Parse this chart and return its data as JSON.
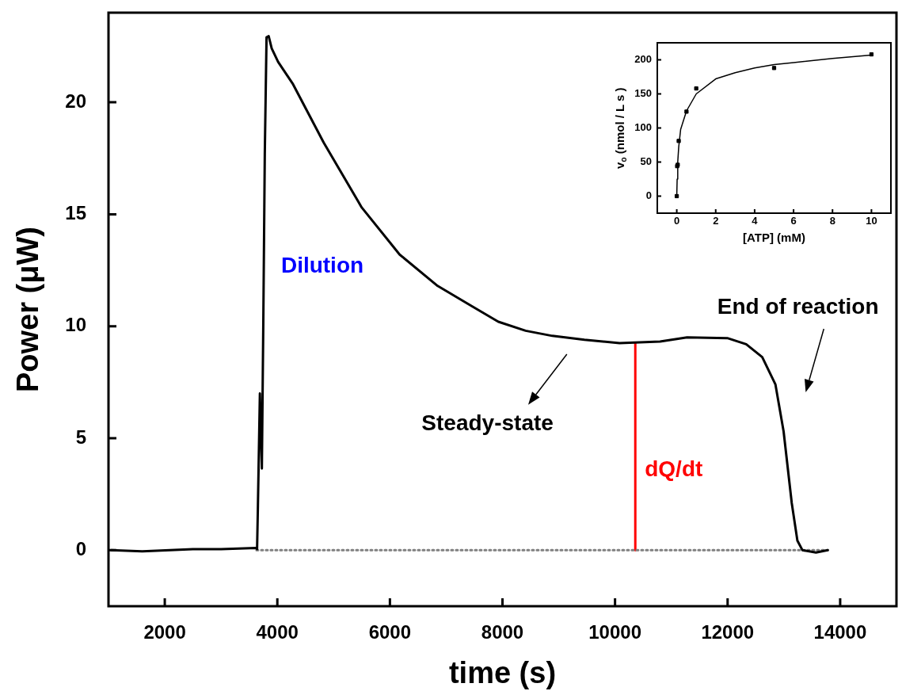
{
  "chart_data": [
    {
      "type": "line",
      "xlabel": "time (s)",
      "ylabel": "Power (μW)",
      "xlim": [
        1000,
        15000
      ],
      "xticks": [
        2000,
        4000,
        6000,
        8000,
        10000,
        12000,
        14000
      ],
      "ylim": [
        -2.5,
        24
      ],
      "yticks": [
        0,
        5,
        10,
        15,
        20
      ],
      "marker": "none",
      "annotations": [
        "Dilution",
        "Steady-state",
        "End of reaction"
      ],
      "series": [
        {
          "color": "#000000",
          "x": [
            1050,
            1600,
            2500,
            3000,
            3620,
            3640,
            3655,
            3690,
            3710,
            3725,
            3750,
            3777,
            3808,
            3846,
            3900,
            4014,
            4280,
            4824,
            5500,
            6173,
            6848,
            7453,
            7926,
            8412,
            8885,
            9456,
            10080,
            10800,
            11280,
            11995,
            12330,
            12615,
            12850,
            12995,
            13140,
            13240,
            13330,
            13570,
            13780
          ],
          "values": [
            0,
            -0.05,
            0.05,
            0.05,
            0.1,
            0.05,
            2.0,
            7.0,
            5.0,
            3.65,
            10.0,
            17.7,
            22.9,
            22.95,
            22.4,
            21.8,
            20.8,
            18.2,
            15.3,
            13.2,
            11.8,
            10.9,
            10.2,
            9.8,
            9.57,
            9.4,
            9.25,
            9.32,
            9.5,
            9.47,
            9.2,
            8.62,
            7.4,
            5.3,
            2.1,
            0.43,
            0,
            -0.1,
            0
          ]
        },
        {
          "color": "#808080",
          "line_style": "dotted",
          "x": [
            3630,
            13780
          ],
          "values": [
            0,
            0
          ]
        },
        {
          "name": "dQ/dt",
          "color": "#ff0000",
          "x": [
            10360,
            10360
          ],
          "values": [
            0,
            9.25
          ]
        }
      ]
    },
    {
      "type": "scatter",
      "xlabel": "[ATP] (mM)",
      "ylabel": "v$_{o}$ (nmol / L s )",
      "xlim": [
        -1,
        11
      ],
      "xticks": [
        0,
        2,
        4,
        6,
        8,
        10
      ],
      "ylim": [
        -25,
        225
      ],
      "yticks": [
        0,
        50,
        100,
        150,
        200
      ],
      "marker": "square",
      "series": [
        {
          "color": "#000000",
          "x": [
            0,
            0.02,
            0.05,
            0.1,
            0.5,
            1,
            5,
            10
          ],
          "values": [
            0,
            44,
            46,
            81,
            124,
            158,
            188,
            208
          ]
        },
        {
          "type": "line",
          "marker": "none",
          "color": "#000000",
          "x": [
            0,
            0.02,
            0.05,
            0.1,
            0.2,
            0.5,
            1,
            2,
            3,
            4,
            5,
            6,
            8,
            10
          ],
          "values": [
            0,
            25,
            50,
            72,
            98,
            125,
            150,
            172,
            181,
            188,
            193,
            196,
            202,
            207
          ]
        }
      ]
    }
  ]
}
